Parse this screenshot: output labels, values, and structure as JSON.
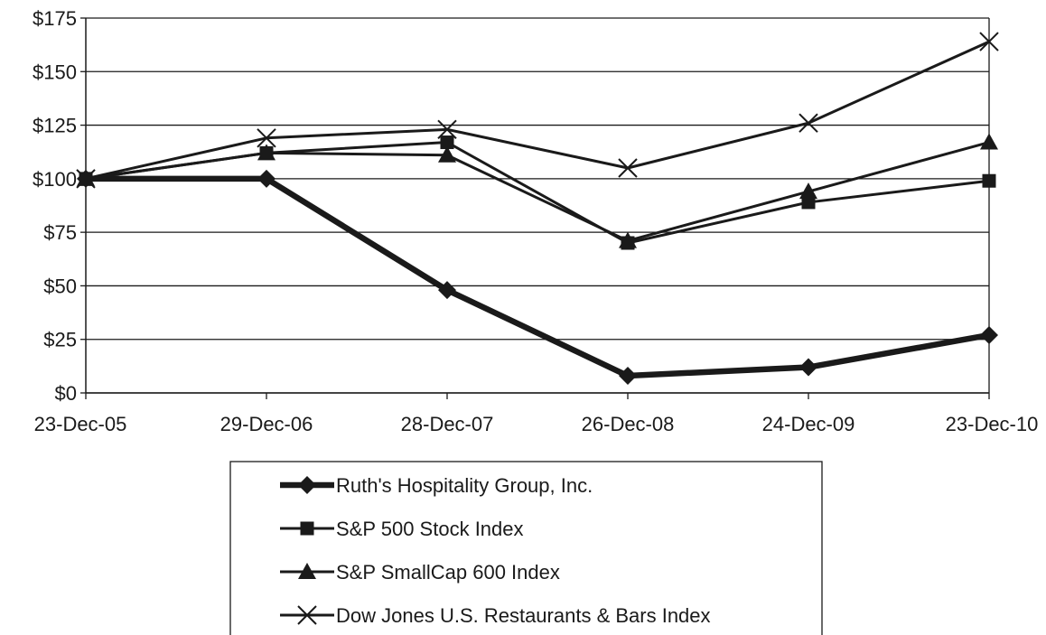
{
  "chart_data": {
    "type": "line",
    "categories": [
      "23-Dec-05",
      "29-Dec-06",
      "28-Dec-07",
      "26-Dec-08",
      "24-Dec-09",
      "23-Dec-10"
    ],
    "ylim": [
      0,
      175
    ],
    "yticks": [
      0,
      25,
      50,
      75,
      100,
      125,
      150,
      175
    ],
    "ytick_labels": [
      "$0",
      "$25",
      "$50",
      "$75",
      "$100",
      "$125",
      "$150",
      "$175"
    ],
    "grid": true,
    "legend_position": "bottom",
    "series": [
      {
        "name": "Ruth's Hospitality Group, Inc.",
        "marker": "diamond",
        "values": [
          100,
          100,
          48,
          8,
          12,
          27
        ]
      },
      {
        "name": "S&P 500 Stock Index",
        "marker": "square",
        "values": [
          100,
          112,
          117,
          70,
          89,
          99
        ]
      },
      {
        "name": "S&P SmallCap 600 Index",
        "marker": "triangle",
        "values": [
          100,
          112,
          111,
          71,
          94,
          117
        ]
      },
      {
        "name": "Dow Jones U.S. Restaurants & Bars Index",
        "marker": "x",
        "values": [
          100,
          119,
          123,
          105,
          126,
          164
        ]
      }
    ]
  }
}
